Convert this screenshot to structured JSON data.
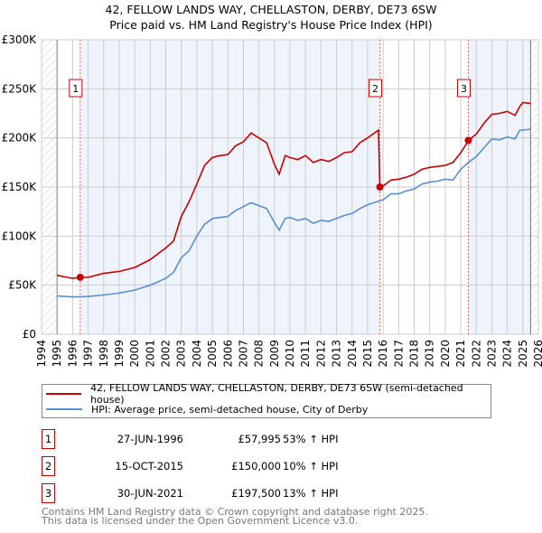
{
  "title": "42, FELLOW LANDS WAY, CHELLASTON, DERBY, DE73 6SW",
  "subtitle": "Price paid vs. HM Land Registry's House Price Index (HPI)",
  "chart_data": {
    "type": "line",
    "title": "42, FELLOW LANDS WAY, CHELLASTON, DERBY, DE73 6SW",
    "subtitle": "Price paid vs. HM Land Registry's House Price Index (HPI)",
    "xlim": [
      1994,
      2026
    ],
    "ylim": [
      0,
      300000
    ],
    "x_ticks": [
      "1994",
      "1995",
      "1996",
      "1997",
      "1998",
      "1999",
      "2000",
      "2001",
      "2002",
      "2003",
      "2004",
      "2005",
      "2006",
      "2007",
      "2008",
      "2009",
      "2010",
      "2011",
      "2012",
      "2013",
      "2014",
      "2015",
      "2016",
      "2017",
      "2018",
      "2019",
      "2020",
      "2021",
      "2022",
      "2023",
      "2024",
      "2025",
      "2026"
    ],
    "y_ticks": [
      {
        "v": 0,
        "label": "£0"
      },
      {
        "v": 50000,
        "label": "£50K"
      },
      {
        "v": 100000,
        "label": "£100K"
      },
      {
        "v": 150000,
        "label": "£150K"
      },
      {
        "v": 200000,
        "label": "£200K"
      },
      {
        "v": 250000,
        "label": "£250K"
      },
      {
        "v": 300000,
        "label": "£300K"
      }
    ],
    "grid": true,
    "series": [
      {
        "name": "42, FELLOW LANDS WAY, CHELLASTON, DERBY, DE73 6SW (semi-detached house)",
        "color": "#cc0000",
        "x": [
          1995,
          1996,
          1996.5,
          1997,
          1998,
          1999,
          2000,
          2001,
          2002,
          2002.5,
          2003,
          2003.5,
          2004,
          2004.5,
          2005,
          2005.5,
          2006,
          2006.5,
          2007,
          2007.5,
          2008,
          2008.5,
          2009,
          2009.3,
          2009.7,
          2010,
          2010.5,
          2011,
          2011.5,
          2012,
          2012.5,
          2013,
          2013.5,
          2014,
          2014.5,
          2015,
          2015.7,
          2015.79,
          2016,
          2016.5,
          2017,
          2017.5,
          2018,
          2018.5,
          2019,
          2019.5,
          2020,
          2020.5,
          2021,
          2021.5,
          2022,
          2022.5,
          2023,
          2023.5,
          2024,
          2024.5,
          2024.8,
          2025,
          2025.5
        ],
        "y": [
          60000,
          57000,
          58000,
          58000,
          62000,
          64000,
          68000,
          76000,
          88000,
          95000,
          120000,
          135000,
          153000,
          172000,
          180000,
          182000,
          183000,
          192000,
          196000,
          205000,
          200000,
          195000,
          173000,
          163000,
          182000,
          180000,
          178000,
          182000,
          175000,
          178000,
          176000,
          180000,
          185000,
          186000,
          195000,
          200000,
          208000,
          150000,
          151000,
          157000,
          158000,
          160000,
          163000,
          168000,
          170000,
          171000,
          172000,
          175000,
          185000,
          197500,
          204000,
          215000,
          224000,
          225000,
          227000,
          223000,
          232000,
          236000,
          235000
        ]
      },
      {
        "name": "HPI: Average price, semi-detached house, City of Derby",
        "color": "#5b8fd4",
        "x": [
          1995,
          1996,
          1997,
          1998,
          1999,
          2000,
          2001,
          2002,
          2002.5,
          2003,
          2003.5,
          2004,
          2004.5,
          2005,
          2006,
          2006.5,
          2007,
          2007.5,
          2008,
          2008.5,
          2009,
          2009.3,
          2009.7,
          2010,
          2010.5,
          2011,
          2011.5,
          2012,
          2012.5,
          2013,
          2013.5,
          2014,
          2014.5,
          2015,
          2015.8,
          2016,
          2016.5,
          2017,
          2017.5,
          2018,
          2018.5,
          2019,
          2019.5,
          2020,
          2020.5,
          2021,
          2021.5,
          2022,
          2022.5,
          2023,
          2023.5,
          2024,
          2024.5,
          2024.8,
          2025,
          2025.5
        ],
        "y": [
          39000,
          38000,
          38500,
          40000,
          42000,
          45000,
          50000,
          57000,
          63000,
          78000,
          85000,
          100000,
          112000,
          118000,
          120000,
          126000,
          130000,
          134000,
          131000,
          128000,
          114000,
          106000,
          118000,
          119000,
          116000,
          118000,
          113000,
          116000,
          115000,
          118000,
          121000,
          123000,
          128000,
          132000,
          136000,
          137000,
          143000,
          143000,
          146000,
          148000,
          153000,
          155000,
          156000,
          158000,
          157000,
          168000,
          175000,
          181000,
          190000,
          199000,
          198000,
          201000,
          199000,
          208000,
          208000,
          209000
        ]
      }
    ],
    "sales": [
      {
        "label": "1",
        "x": 1996.49
      },
      {
        "label": "2",
        "x": 2015.79
      },
      {
        "label": "3",
        "x": 2021.49
      }
    ],
    "sale_points": [
      {
        "x": 1996.49,
        "y": 57995
      },
      {
        "x": 2015.79,
        "y": 150000
      },
      {
        "x": 2021.49,
        "y": 197500
      }
    ],
    "data_end": 2025.5
  },
  "legend": {
    "items": [
      {
        "label": "42, FELLOW LANDS WAY, CHELLASTON, DERBY, DE73 6SW (semi-detached house)",
        "color": "#cc0000"
      },
      {
        "label": "HPI: Average price, semi-detached house, City of Derby",
        "color": "#5b8fd4"
      }
    ]
  },
  "sales_table": [
    {
      "num": "1",
      "date": "27-JUN-1996",
      "price": "£57,995",
      "hpi": "53% ↑ HPI"
    },
    {
      "num": "2",
      "date": "15-OCT-2015",
      "price": "£150,000",
      "hpi": "10% ↑ HPI"
    },
    {
      "num": "3",
      "date": "30-JUN-2021",
      "price": "£197,500",
      "hpi": "13% ↑ HPI"
    }
  ],
  "footer": [
    "Contains HM Land Registry data © Crown copyright and database right 2025.",
    "This data is licensed under the Open Government Licence v3.0."
  ]
}
